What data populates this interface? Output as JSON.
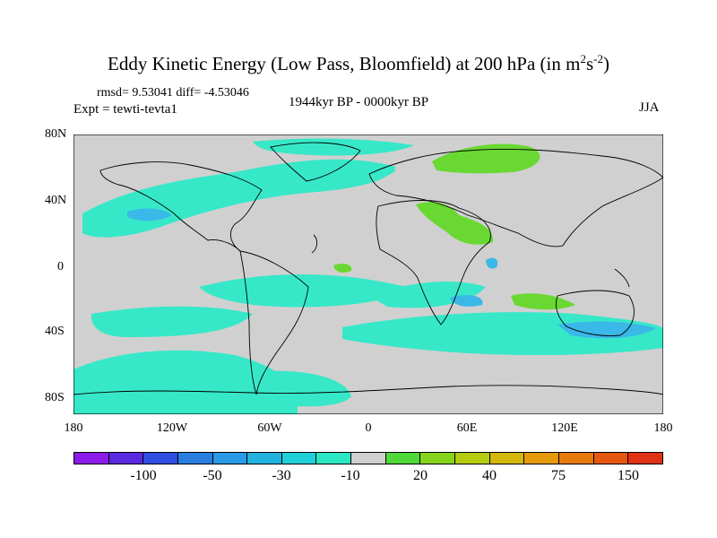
{
  "title": {
    "prefix": "Eddy Kinetic Energy (Low Pass, Bloomfield) at 200 hPa (in m",
    "sup1": "2",
    "mid": "s",
    "sup2": "-2",
    "suffix": ")"
  },
  "stats": "rmsd= 9.53041 diff= -4.53046",
  "experiment": "Expt = tewti-tevta1",
  "period": "1944kyr BP - 0000kyr BP",
  "season": "JJA",
  "y_ticks": [
    "80N",
    "40N",
    "0",
    "40S",
    "80S"
  ],
  "x_ticks": [
    "180",
    "120W",
    "60W",
    "0",
    "60E",
    "120E",
    "180"
  ],
  "colorbar": {
    "colors": [
      "#8c1bea",
      "#5a2ae0",
      "#2f4fe0",
      "#2a7ee0",
      "#2a9ae6",
      "#22b2e0",
      "#22d0d8",
      "#2ce8c2",
      "#d0d0d0",
      "#4fd83a",
      "#86d41c",
      "#b6cc10",
      "#d4b80a",
      "#e49a0a",
      "#e67a0c",
      "#e65810",
      "#e03214"
    ],
    "labels": [
      "-100",
      "-50",
      "-30",
      "-10",
      "20",
      "40",
      "75",
      "150"
    ]
  },
  "colors": {
    "neutral": "#d0d0d0",
    "cyan": "#36e8c8",
    "blue": "#3ab8e8",
    "green": "#6ad832"
  }
}
